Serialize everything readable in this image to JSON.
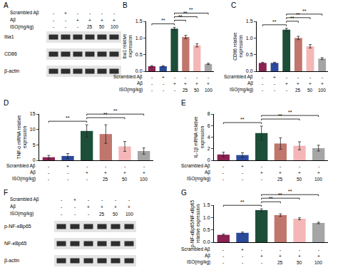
{
  "conditions": {
    "rows": [
      {
        "label": "Scrambled Aβ",
        "marks": [
          "-",
          "+",
          "-",
          "-",
          "-",
          "-"
        ]
      },
      {
        "label": "Aβ",
        "marks": [
          "-",
          "-",
          "+",
          "+",
          "+",
          "+"
        ]
      },
      {
        "label": "ISO(mg/kg)",
        "marks": [
          "-",
          "-",
          "-",
          "25",
          "50",
          "100"
        ]
      }
    ]
  },
  "blots": [
    {
      "panel": "A",
      "rows": [
        "Iba1",
        "CD86",
        "β-actin"
      ]
    },
    {
      "panel": "F",
      "rows": [
        "p-NF-κBp65",
        "NF-κBp65",
        "β-actin"
      ]
    }
  ],
  "chart_data": [
    {
      "panel": "B",
      "type": "bar",
      "y_label": "Iba1 relative\nexpression",
      "values": [
        0.15,
        0.15,
        1.28,
        1.03,
        0.78,
        0.22
      ],
      "errors": [
        0.02,
        0.02,
        0.04,
        0.05,
        0.05,
        0.02
      ],
      "colors": [
        "#8b2252",
        "#2b4a9b",
        "#1d4e3a",
        "#c0766c",
        "#f4b6b6",
        "#a5a5a5"
      ],
      "ylim": [
        0,
        1.5
      ],
      "yticks": [
        {
          "value": 0,
          "label": "0.0"
        },
        {
          "value": 0.5,
          "label": "0.5"
        },
        {
          "value": 1,
          "label": "1.0"
        },
        {
          "value": 1.5,
          "label": "1.5"
        }
      ],
      "significance": [
        {
          "from": 0,
          "to": 2,
          "label": "**"
        },
        {
          "from": 2,
          "to": 3,
          "label": "**"
        },
        {
          "from": 2,
          "to": 4,
          "label": "**"
        },
        {
          "from": 2,
          "to": 5,
          "label": "**"
        }
      ]
    },
    {
      "panel": "C",
      "type": "bar",
      "y_label": "CD86 relative\nexpression",
      "values": [
        0.25,
        0.25,
        1.25,
        1.0,
        0.75,
        0.38
      ],
      "errors": [
        0.02,
        0.02,
        0.04,
        0.05,
        0.05,
        0.03
      ],
      "colors": [
        "#8b2252",
        "#2b4a9b",
        "#1d4e3a",
        "#c0766c",
        "#f4b6b6",
        "#a5a5a5"
      ],
      "ylim": [
        0,
        1.5
      ],
      "yticks": [
        {
          "value": 0,
          "label": "0.0"
        },
        {
          "value": 0.5,
          "label": "0.5"
        },
        {
          "value": 1,
          "label": "1.0"
        },
        {
          "value": 1.5,
          "label": "1.5"
        }
      ],
      "significance": [
        {
          "from": 0,
          "to": 2,
          "label": "**"
        },
        {
          "from": 2,
          "to": 3,
          "label": "**"
        },
        {
          "from": 2,
          "to": 4,
          "label": "**"
        },
        {
          "from": 2,
          "to": 5,
          "label": "**"
        }
      ]
    },
    {
      "panel": "D",
      "type": "bar",
      "y_label": "TNF-α mRNA relative\nexpression",
      "values": [
        1.0,
        1.4,
        9.5,
        8.5,
        4.5,
        3.0
      ],
      "errors": [
        0.6,
        0.8,
        2.0,
        3.0,
        1.6,
        1.0
      ],
      "colors": [
        "#8b2252",
        "#2b4a9b",
        "#1d4e3a",
        "#c0766c",
        "#f4b6b6",
        "#a5a5a5"
      ],
      "ylim": [
        0,
        15
      ],
      "yticks": [
        0,
        5,
        10,
        15
      ],
      "significance": [
        {
          "from": 0,
          "to": 2,
          "label": "**"
        },
        {
          "from": 2,
          "to": 4,
          "label": "**"
        },
        {
          "from": 2,
          "to": 5,
          "label": "**"
        }
      ]
    },
    {
      "panel": "E",
      "type": "bar",
      "y_label": "IL-1β mRNA relative\nexpression",
      "values": [
        1.0,
        0.9,
        4.7,
        2.9,
        2.5,
        2.1
      ],
      "errors": [
        0.4,
        0.4,
        1.2,
        1.0,
        0.7,
        0.5
      ],
      "colors": [
        "#8b2252",
        "#2b4a9b",
        "#1d4e3a",
        "#c0766c",
        "#f4b6b6",
        "#a5a5a5"
      ],
      "ylim": [
        0,
        8
      ],
      "yticks": [
        0,
        2,
        4,
        6,
        8
      ],
      "significance": [
        {
          "from": 0,
          "to": 2,
          "label": "**"
        },
        {
          "from": 2,
          "to": 4,
          "label": "**"
        },
        {
          "from": 2,
          "to": 5,
          "label": "**"
        }
      ]
    },
    {
      "panel": "G",
      "type": "bar",
      "y_label": "p-NF-κBp65/NF-κBp65\nrelative expression",
      "values": [
        0.3,
        0.38,
        1.3,
        1.1,
        0.95,
        0.78
      ],
      "errors": [
        0.03,
        0.03,
        0.05,
        0.05,
        0.04,
        0.03
      ],
      "colors": [
        "#8b2252",
        "#2b4a9b",
        "#1d4e3a",
        "#c0766c",
        "#f4b6b6",
        "#a5a5a5"
      ],
      "ylim": [
        0,
        1.5
      ],
      "yticks": [
        {
          "value": 0,
          "label": "0.0"
        },
        {
          "value": 0.5,
          "label": "0.5"
        },
        {
          "value": 1,
          "label": "1.0"
        },
        {
          "value": 1.5,
          "label": "1.5"
        }
      ],
      "significance": [
        {
          "from": 0,
          "to": 2,
          "label": "**"
        },
        {
          "from": 2,
          "to": 3,
          "label": "**"
        },
        {
          "from": 2,
          "to": 4,
          "label": "**"
        },
        {
          "from": 2,
          "to": 5,
          "label": "**"
        }
      ]
    }
  ]
}
